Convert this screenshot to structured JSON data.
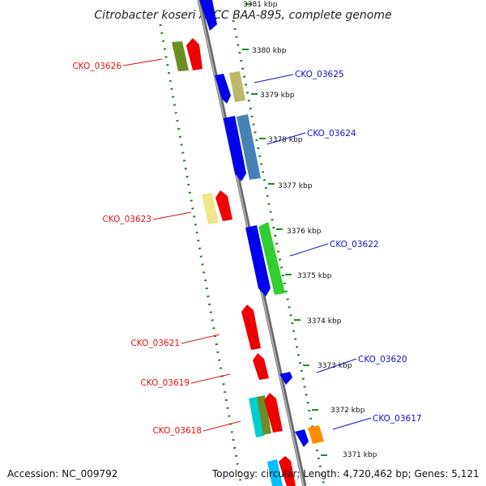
{
  "title": "Citrobacter koseri ATCC BAA-895, complete genome",
  "footer": {
    "accession": "Accession: NC_009792",
    "summary": "Topology: circular; Length: 4,720,462 bp; Genes: 5,121"
  },
  "ticks": [
    {
      "kbp": 3381,
      "label": "3381 kbp"
    },
    {
      "kbp": 3380,
      "label": "3380 kbp"
    },
    {
      "kbp": 3379,
      "label": "3379 kbp"
    },
    {
      "kbp": 3378,
      "label": "3378 kbp"
    },
    {
      "kbp": 3377,
      "label": "3377 kbp"
    },
    {
      "kbp": 3376,
      "label": "3376 kbp"
    },
    {
      "kbp": 3375,
      "label": "3375 kbp"
    },
    {
      "kbp": 3374,
      "label": "3374 kbp"
    },
    {
      "kbp": 3373,
      "label": "3373 kbp"
    },
    {
      "kbp": 3372,
      "label": "3372 kbp"
    },
    {
      "kbp": 3371,
      "label": "3371 kbp"
    }
  ],
  "genes": [
    {
      "id": "CKO_03626",
      "strand": "left",
      "label_color": "#dd1111"
    },
    {
      "id": "CKO_03625",
      "strand": "right",
      "label_color": "#1111cc"
    },
    {
      "id": "CKO_03624",
      "strand": "right",
      "label_color": "#1111cc"
    },
    {
      "id": "CKO_03623",
      "strand": "left",
      "label_color": "#dd1111"
    },
    {
      "id": "CKO_03622",
      "strand": "right",
      "label_color": "#1111cc"
    },
    {
      "id": "CKO_03621",
      "strand": "left",
      "label_color": "#dd1111"
    },
    {
      "id": "CKO_03620",
      "strand": "right",
      "label_color": "#1111cc"
    },
    {
      "id": "CKO_03619",
      "strand": "left",
      "label_color": "#dd1111"
    },
    {
      "id": "CKO_03618",
      "strand": "left",
      "label_color": "#dd1111"
    },
    {
      "id": "CKO_03617",
      "strand": "right",
      "label_color": "#1111cc"
    }
  ],
  "colors": {
    "backbone": "#8a8a8a",
    "ruler_dots": "#1f8a1f",
    "forward_strand": "#0000ee",
    "reverse_strand": "#ee0000"
  }
}
